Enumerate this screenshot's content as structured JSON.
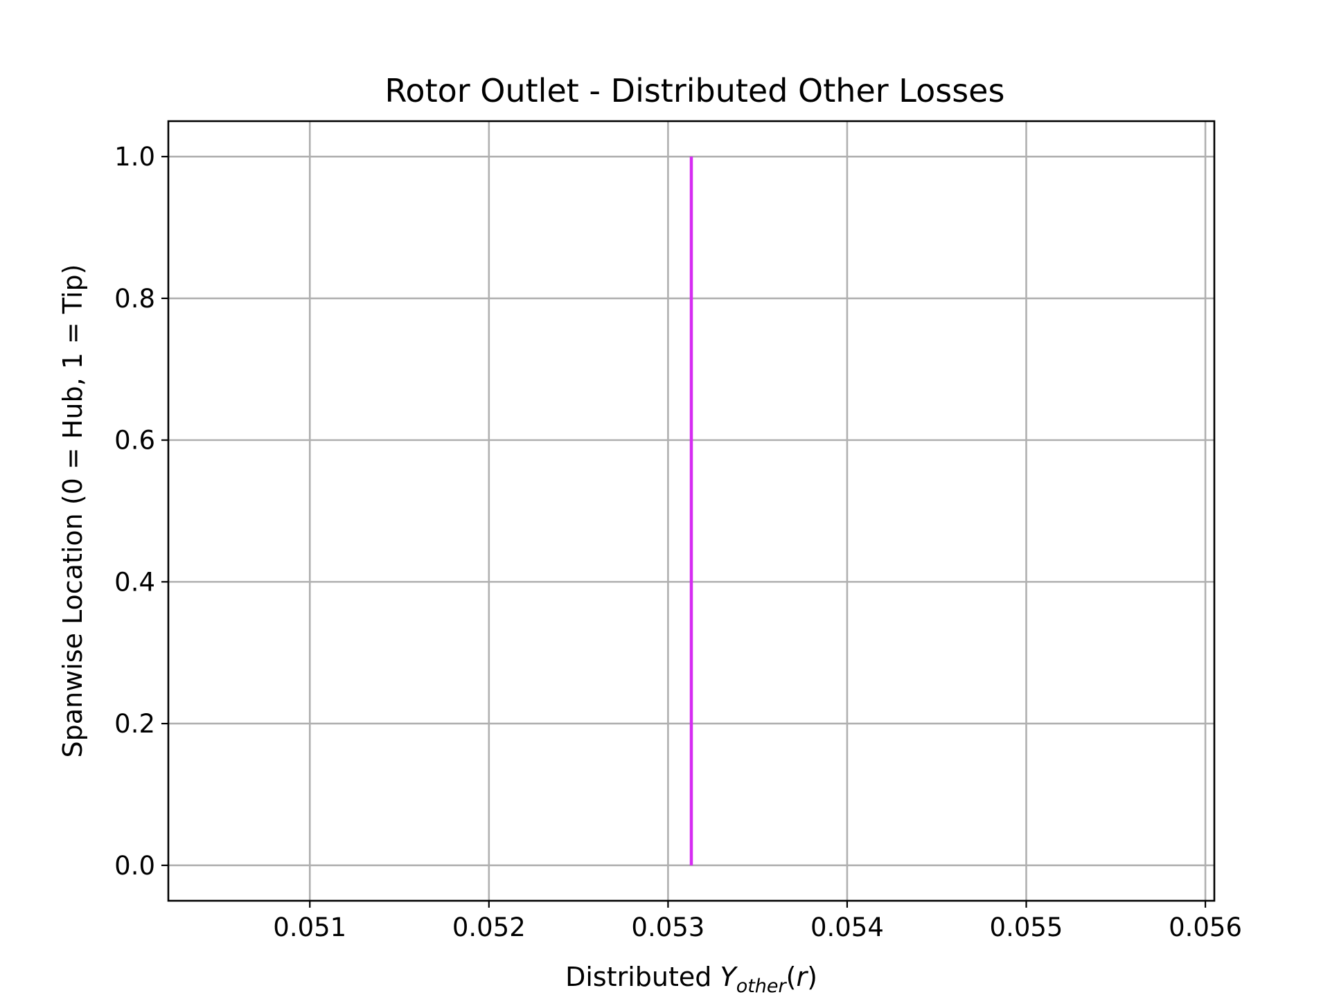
{
  "chart_data": {
    "type": "line",
    "title": "Rotor Outlet - Distributed Other Losses",
    "xlabel": {
      "prefix": "Distributed ",
      "symbol": "Y",
      "subscript": "other",
      "suffix_open": "(",
      "suffix_var": "r",
      "suffix_close": ")"
    },
    "ylabel": "Spanwise Location (0 = Hub, 1 = Tip)",
    "xlim": [
      0.05021,
      0.05605
    ],
    "ylim": [
      -0.05,
      1.05
    ],
    "grid": true,
    "x_ticks": [
      0.051,
      0.052,
      0.053,
      0.054,
      0.055,
      0.056
    ],
    "x_tick_labels": [
      "0.051",
      "0.052",
      "0.053",
      "0.054",
      "0.055",
      "0.056"
    ],
    "y_ticks": [
      0.0,
      0.2,
      0.4,
      0.6,
      0.8,
      1.0
    ],
    "y_tick_labels": [
      "0.0",
      "0.2",
      "0.4",
      "0.6",
      "0.8",
      "1.0"
    ],
    "series": [
      {
        "color": "#d62cf2",
        "x": [
          0.05313,
          0.05313
        ],
        "y": [
          0.0,
          1.0
        ]
      }
    ]
  }
}
